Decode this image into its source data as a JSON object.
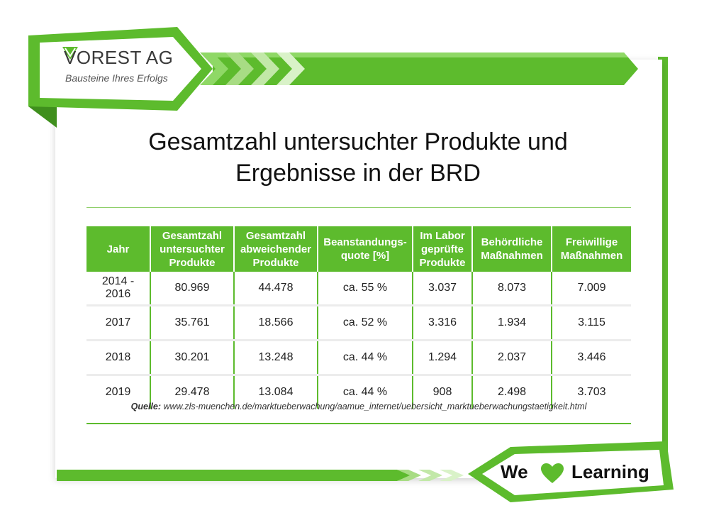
{
  "logo": {
    "name": "VOREST AG",
    "tagline": "Bausteine Ihres Erfolgs"
  },
  "title": {
    "line1": "Gesamtzahl untersuchter Produkte und",
    "line2": "Ergebnisse in der BRD"
  },
  "table": {
    "headers": [
      [
        "Jahr"
      ],
      [
        "Gesamtzahl",
        "untersuchter",
        "Produkte"
      ],
      [
        "Gesamtzahl",
        "abweichender",
        "Produkte"
      ],
      [
        "Beanstandungs-",
        "quote [%]"
      ],
      [
        "Im Labor",
        "geprüfte",
        "Produkte"
      ],
      [
        "Behördliche",
        "Maßnahmen"
      ],
      [
        "Freiwillige",
        "Maßnahmen"
      ]
    ],
    "rows": [
      [
        "2014 - 2016",
        "80.969",
        "44.478",
        "ca. 55 %",
        "3.037",
        "8.073",
        "7.009"
      ],
      [
        "2017",
        "35.761",
        "18.566",
        "ca. 52 %",
        "3.316",
        "1.934",
        "3.115"
      ],
      [
        "2018",
        "30.201",
        "13.248",
        "ca. 44 %",
        "1.294",
        "2.037",
        "3.446"
      ],
      [
        "2019",
        "29.478",
        "13.084",
        "ca. 44 %",
        "908",
        "2.498",
        "3.703"
      ]
    ]
  },
  "source": {
    "label": "Quelle:",
    "url": "www.zls-muenchen.de/marktueberwachung/aamue_internet/uebersicht_marktueberwachungstaetigkeit.html"
  },
  "badge": {
    "we": "We",
    "learning": "Learning"
  },
  "icons": {
    "logo_mark": "v-check-icon",
    "heart": "heart-icon"
  },
  "colors": {
    "brand_green": "#5dbb2d",
    "light_green": "#a8dc84",
    "text_dark": "#111111"
  }
}
